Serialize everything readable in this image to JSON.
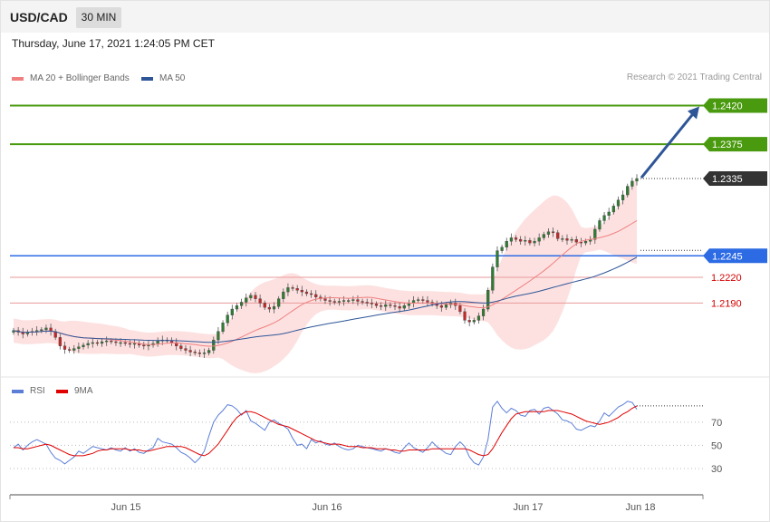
{
  "header": {
    "symbol": "USD/CAD",
    "timeframe": "30 MIN"
  },
  "datetime": "Thursday, June 17, 2021 1:24:05 PM CET",
  "legend_main": [
    {
      "label": "MA 20 + Bollinger Bands",
      "color": "#f08080"
    },
    {
      "label": "MA 50",
      "color": "#2e5597"
    }
  ],
  "copyright": "Research © 2021 Trading Central",
  "legend_rsi": [
    {
      "label": "RSI",
      "color": "#5b7fd6"
    },
    {
      "label": "9MA",
      "color": "#e00000"
    }
  ],
  "colors": {
    "up": "#2e7d32",
    "down": "#c62828",
    "bands": "#fde1e1",
    "target": "#4a9a0f",
    "support": "#2d6be4",
    "minor": "#d9534f",
    "price_tag": "#333333",
    "arrow": "#2e5597"
  },
  "chart_data": [
    {
      "type": "line",
      "name": "price",
      "x_ticks": [
        "Jun 15",
        "Jun 16",
        "Jun 17",
        "Jun 18"
      ],
      "ylim": [
        1.2125,
        1.243
      ],
      "levels": [
        {
          "label": "1.2420",
          "value": 1.242,
          "kind": "target"
        },
        {
          "label": "1.2375",
          "value": 1.2375,
          "kind": "target"
        },
        {
          "label": "1.2335",
          "value": 1.2335,
          "kind": "price"
        },
        {
          "label": "1.2245",
          "value": 1.2245,
          "kind": "support"
        },
        {
          "label": "1.2220",
          "value": 1.222,
          "kind": "minor"
        },
        {
          "label": "1.2190",
          "value": 1.219,
          "kind": "minor"
        }
      ],
      "series": [
        {
          "values": [
            1.2158,
            1.2156,
            1.2154,
            1.2156,
            1.2157,
            1.2158,
            1.2159,
            1.2161,
            1.2157,
            1.215,
            1.214,
            1.2136,
            1.2135,
            1.2137,
            1.2139,
            1.2141,
            1.2143,
            1.2144,
            1.2143,
            1.2145,
            1.2146,
            1.2145,
            1.2144,
            1.2144,
            1.2143,
            1.2142,
            1.2143,
            1.2141,
            1.214,
            1.2141,
            1.2143,
            1.2146,
            1.2147,
            1.2146,
            1.2144,
            1.214,
            1.2137,
            1.2135,
            1.2133,
            1.2132,
            1.2131,
            1.2132,
            1.2135,
            1.2147,
            1.2157,
            1.2167,
            1.2176,
            1.2183,
            1.2187,
            1.2191,
            1.2196,
            1.2199,
            1.2195,
            1.219,
            1.2185,
            1.2183,
            1.2186,
            1.2195,
            1.2203,
            1.2208,
            1.2207,
            1.2205,
            1.2203,
            1.2201,
            1.22,
            1.2197,
            1.2195,
            1.2193,
            1.2192,
            1.2191,
            1.2192,
            1.2193,
            1.2193,
            1.2194,
            1.2192,
            1.2191,
            1.219,
            1.2189,
            1.2187,
            1.2186,
            1.2188,
            1.2187,
            1.2186,
            1.2184,
            1.2187,
            1.219,
            1.2193,
            1.2194,
            1.2193,
            1.2191,
            1.2189,
            1.2187,
            1.2185,
            1.2188,
            1.219,
            1.2187,
            1.218,
            1.217,
            1.2168,
            1.217,
            1.2175,
            1.2183,
            1.2205,
            1.2232,
            1.2251,
            1.2255,
            1.2262,
            1.2266,
            1.2264,
            1.2262,
            1.2263,
            1.226,
            1.2262,
            1.2266,
            1.227,
            1.2273,
            1.2272,
            1.2265,
            1.2265,
            1.2263,
            1.2264,
            1.2261,
            1.226,
            1.2262,
            1.2264,
            1.2276,
            1.2286,
            1.2292,
            1.2296,
            1.2303,
            1.231,
            1.2316,
            1.2326,
            1.2332,
            1.2335
          ]
        }
      ]
    },
    {
      "type": "line",
      "name": "rsi",
      "y_ticks": [
        30,
        50,
        70
      ],
      "ylim": [
        12,
        98
      ],
      "series": [
        {
          "name": "RSI",
          "color": "#5b7fd6",
          "values": [
            48,
            51,
            46,
            50,
            53,
            55,
            53,
            51,
            44,
            39,
            37,
            34,
            37,
            40,
            45,
            43,
            46,
            49,
            48,
            47,
            46,
            48,
            46,
            45,
            48,
            45,
            47,
            44,
            43,
            46,
            48,
            56,
            53,
            52,
            51,
            48,
            44,
            42,
            39,
            35,
            39,
            45,
            58,
            70,
            76,
            80,
            85,
            84,
            81,
            76,
            80,
            71,
            69,
            66,
            63,
            70,
            72,
            69,
            67,
            64,
            56,
            50,
            51,
            47,
            55,
            52,
            54,
            51,
            50,
            52,
            49,
            47,
            46,
            47,
            50,
            49,
            48,
            47,
            46,
            45,
            47,
            46,
            44,
            43,
            48,
            52,
            48,
            46,
            44,
            48,
            53,
            49,
            46,
            43,
            42,
            49,
            53,
            49,
            40,
            35,
            33,
            40,
            55,
            83,
            88,
            82,
            78,
            82,
            80,
            76,
            75,
            80,
            81,
            77,
            82,
            83,
            80,
            77,
            72,
            71,
            69,
            64,
            63,
            65,
            67,
            66,
            71,
            78,
            75,
            79,
            83,
            85,
            88,
            87,
            81
          ]
        },
        {
          "name": "9MA",
          "color": "#e00000",
          "values": [
            48,
            48,
            47,
            47,
            48,
            49,
            50,
            51,
            50,
            48,
            46,
            44,
            42,
            41,
            41,
            41,
            42,
            43,
            45,
            46,
            46,
            47,
            47,
            47,
            47,
            46,
            46,
            46,
            45,
            45,
            46,
            47,
            48,
            49,
            49,
            49,
            49,
            48,
            46,
            44,
            42,
            41,
            43,
            47,
            51,
            57,
            63,
            69,
            74,
            77,
            79,
            79,
            78,
            76,
            74,
            72,
            70,
            68,
            67,
            66,
            64,
            62,
            60,
            58,
            56,
            54,
            53,
            52,
            51,
            51,
            51,
            50,
            49,
            49,
            49,
            48,
            48,
            48,
            47,
            47,
            47,
            46,
            46,
            45,
            45,
            46,
            46,
            46,
            46,
            46,
            47,
            47,
            47,
            47,
            47,
            47,
            47,
            47,
            46,
            44,
            42,
            41,
            42,
            47,
            54,
            61,
            67,
            73,
            77,
            78,
            79,
            79,
            79,
            79,
            79,
            80,
            80,
            80,
            79,
            78,
            77,
            75,
            73,
            71,
            70,
            69,
            68,
            69,
            70,
            72,
            74,
            77,
            79,
            82,
            84
          ]
        }
      ]
    }
  ]
}
